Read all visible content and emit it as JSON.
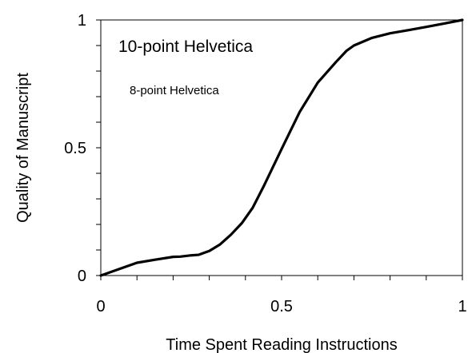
{
  "chart_data": {
    "type": "line",
    "xlabel": "Time Spent Reading Instructions",
    "ylabel": "Quality of Manuscript",
    "xlim": [
      0,
      1
    ],
    "ylim": [
      0,
      1
    ],
    "x_ticks": [
      "0",
      "0.5",
      "1"
    ],
    "y_ticks": [
      "0",
      "0.5",
      "1"
    ],
    "grid": false,
    "annotations": [
      "10-point Helvetica",
      "8-point Helvetica"
    ],
    "series": [
      {
        "x": [
          0,
          0.05,
          0.1,
          0.15,
          0.2,
          0.22,
          0.25,
          0.27,
          0.3,
          0.33,
          0.36,
          0.39,
          0.42,
          0.45,
          0.5,
          0.55,
          0.6,
          0.65,
          0.68,
          0.7,
          0.75,
          0.8,
          0.85,
          0.9,
          0.95,
          1
        ],
        "y": [
          0,
          0.025,
          0.05,
          0.062,
          0.073,
          0.074,
          0.079,
          0.081,
          0.096,
          0.122,
          0.16,
          0.205,
          0.265,
          0.348,
          0.495,
          0.64,
          0.755,
          0.835,
          0.88,
          0.9,
          0.93,
          0.948,
          0.96,
          0.973,
          0.986,
          1
        ]
      }
    ],
    "colors": {
      "line": "#000000",
      "axis": "#000000",
      "background": "#ffffff"
    }
  }
}
